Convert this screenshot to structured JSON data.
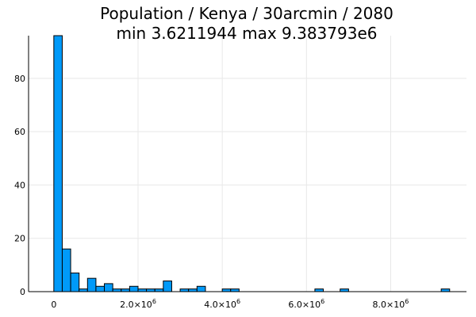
{
  "chart_data": {
    "type": "bar",
    "title": "Population / Kenya / 30arcmin / 2080",
    "subtitle": "min 3.6211944  max 9.383793e6",
    "xlabel": "",
    "ylabel": "",
    "bar_color": "#009af9",
    "grid": true,
    "bin_width": 200000,
    "xlim": [
      -600000,
      9800000
    ],
    "ylim": [
      0,
      96
    ],
    "x_ticks": [
      {
        "value": 0,
        "label": "0",
        "mantissa": "",
        "exponent": ""
      },
      {
        "value": 2000000,
        "label": "",
        "mantissa": "2.0×10",
        "exponent": "6"
      },
      {
        "value": 4000000,
        "label": "",
        "mantissa": "4.0×10",
        "exponent": "6"
      },
      {
        "value": 6000000,
        "label": "",
        "mantissa": "6.0×10",
        "exponent": "6"
      },
      {
        "value": 8000000,
        "label": "",
        "mantissa": "8.0×10",
        "exponent": "6"
      }
    ],
    "y_ticks": [
      {
        "value": 0,
        "label": "0"
      },
      {
        "value": 20,
        "label": "20"
      },
      {
        "value": 40,
        "label": "40"
      },
      {
        "value": 60,
        "label": "60"
      },
      {
        "value": 80,
        "label": "80"
      }
    ],
    "bins": [
      {
        "x0": 0,
        "count": 96
      },
      {
        "x0": 200000,
        "count": 16
      },
      {
        "x0": 400000,
        "count": 7
      },
      {
        "x0": 600000,
        "count": 1
      },
      {
        "x0": 800000,
        "count": 5
      },
      {
        "x0": 1000000,
        "count": 2
      },
      {
        "x0": 1200000,
        "count": 3
      },
      {
        "x0": 1400000,
        "count": 1
      },
      {
        "x0": 1600000,
        "count": 1
      },
      {
        "x0": 1800000,
        "count": 2
      },
      {
        "x0": 2000000,
        "count": 1
      },
      {
        "x0": 2200000,
        "count": 1
      },
      {
        "x0": 2400000,
        "count": 1
      },
      {
        "x0": 2600000,
        "count": 4
      },
      {
        "x0": 3000000,
        "count": 1
      },
      {
        "x0": 3200000,
        "count": 1
      },
      {
        "x0": 3400000,
        "count": 2
      },
      {
        "x0": 4000000,
        "count": 1
      },
      {
        "x0": 4200000,
        "count": 1
      },
      {
        "x0": 6200000,
        "count": 1
      },
      {
        "x0": 6800000,
        "count": 1
      },
      {
        "x0": 9200000,
        "count": 1
      }
    ]
  }
}
